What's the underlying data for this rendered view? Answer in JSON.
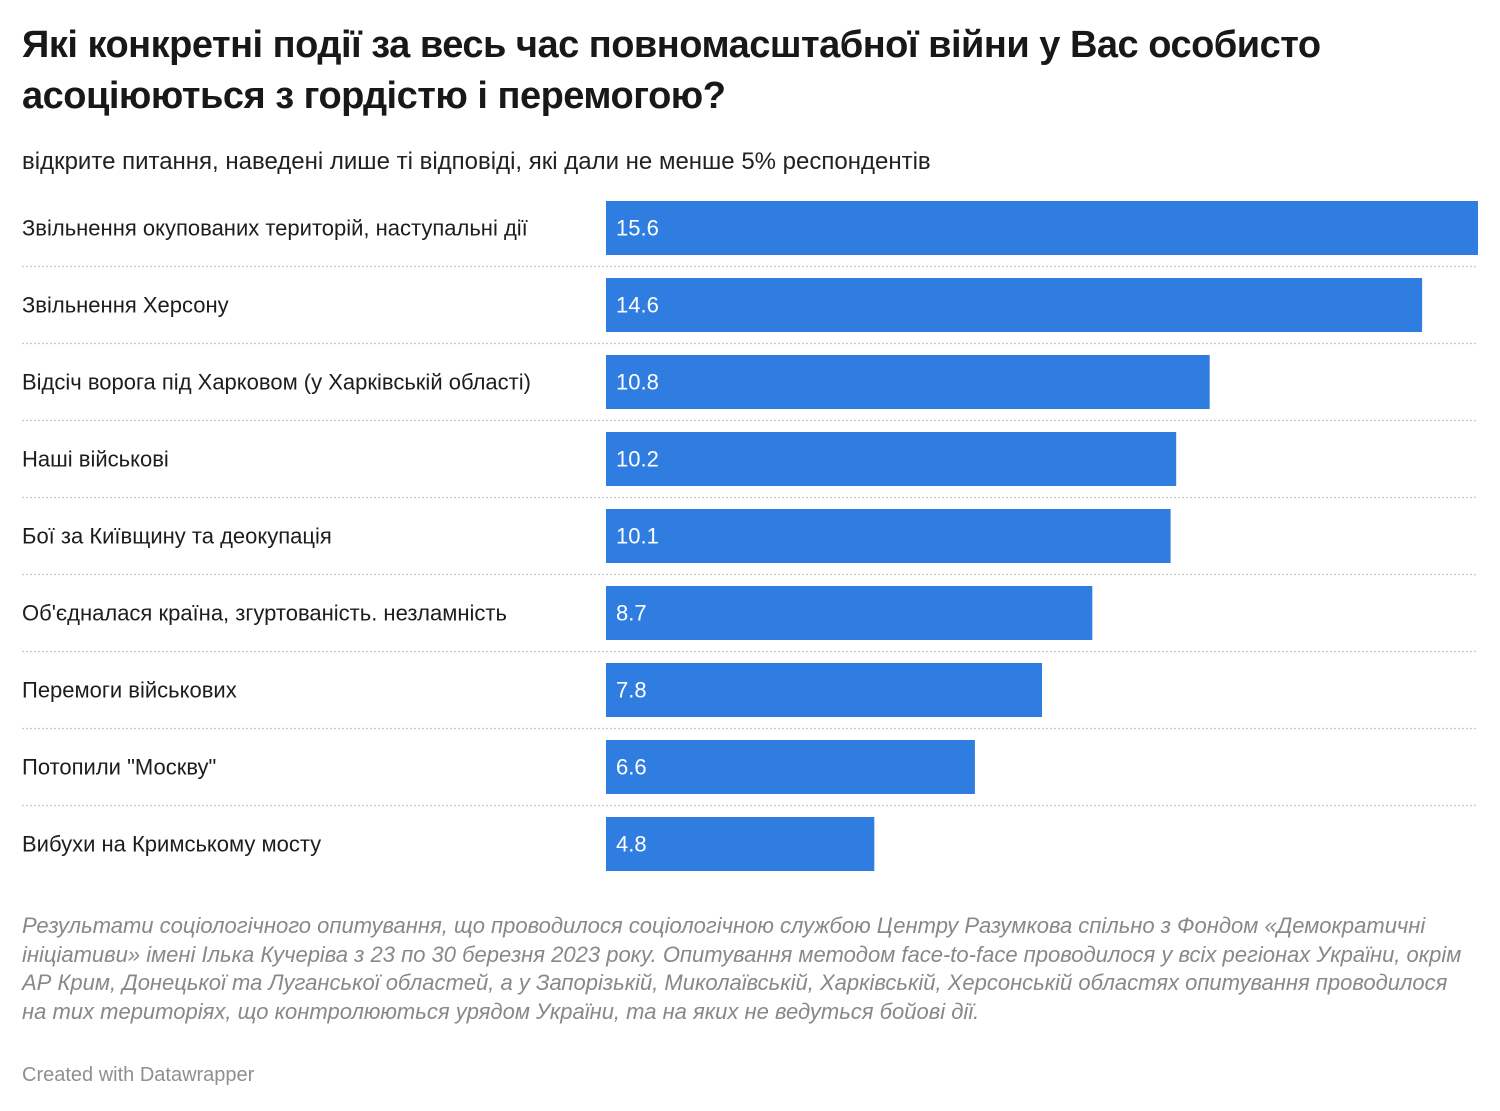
{
  "header": {
    "title": "Які конкретні події за весь час повномасштабної війни у Вас особисто асоціюються з гордістю і перемогою?",
    "subtitle": "відкрите питання, наведені лише ті відповіді, які дали не менше 5% респондентів"
  },
  "chart_data": {
    "type": "bar",
    "orientation": "horizontal",
    "categories": [
      "Звільнення окупованих територій, наступальні дії",
      "Звільнення Херсону",
      "Відсіч ворога під Харковом (у Харківській області)",
      "Наші військові",
      "Бої за Київщину та деокупація",
      "Об'єдналася країна, згуртованість. незламність",
      "Перемоги військових",
      "Потопили \"Москву\"",
      "Вибухи на Кримському мосту"
    ],
    "values": [
      15.6,
      14.6,
      10.8,
      10.2,
      10.1,
      8.7,
      7.8,
      6.6,
      4.8
    ],
    "value_labels": [
      "15.6",
      "14.6",
      "10.8",
      "10.2",
      "10.1",
      "8.7",
      "7.8",
      "6.6",
      "4.8"
    ],
    "xlim": [
      0,
      15.6
    ],
    "bar_color": "#2f7de1",
    "grid": false,
    "separators": "dotted"
  },
  "footer": {
    "notes": "Результати соціологічного опитування, що проводилося соціологічною службою Центру Разумкова спільно з Фондом «Демократичні ініціативи» імені Ілька Кучеріва з 23 по 30 березня 2023 року. Опитування методом face-to-face проводилося у всіх регіонах України, окрім АР Крим, Донецької та Луганської областей, а у Запорізькій, Миколаївській, Харківській, Херсонській областях опитування проводилося на тих територіях, що контролюються урядом України, та на яких не ведуться бойові дії.",
    "credit": "Created with Datawrapper"
  }
}
